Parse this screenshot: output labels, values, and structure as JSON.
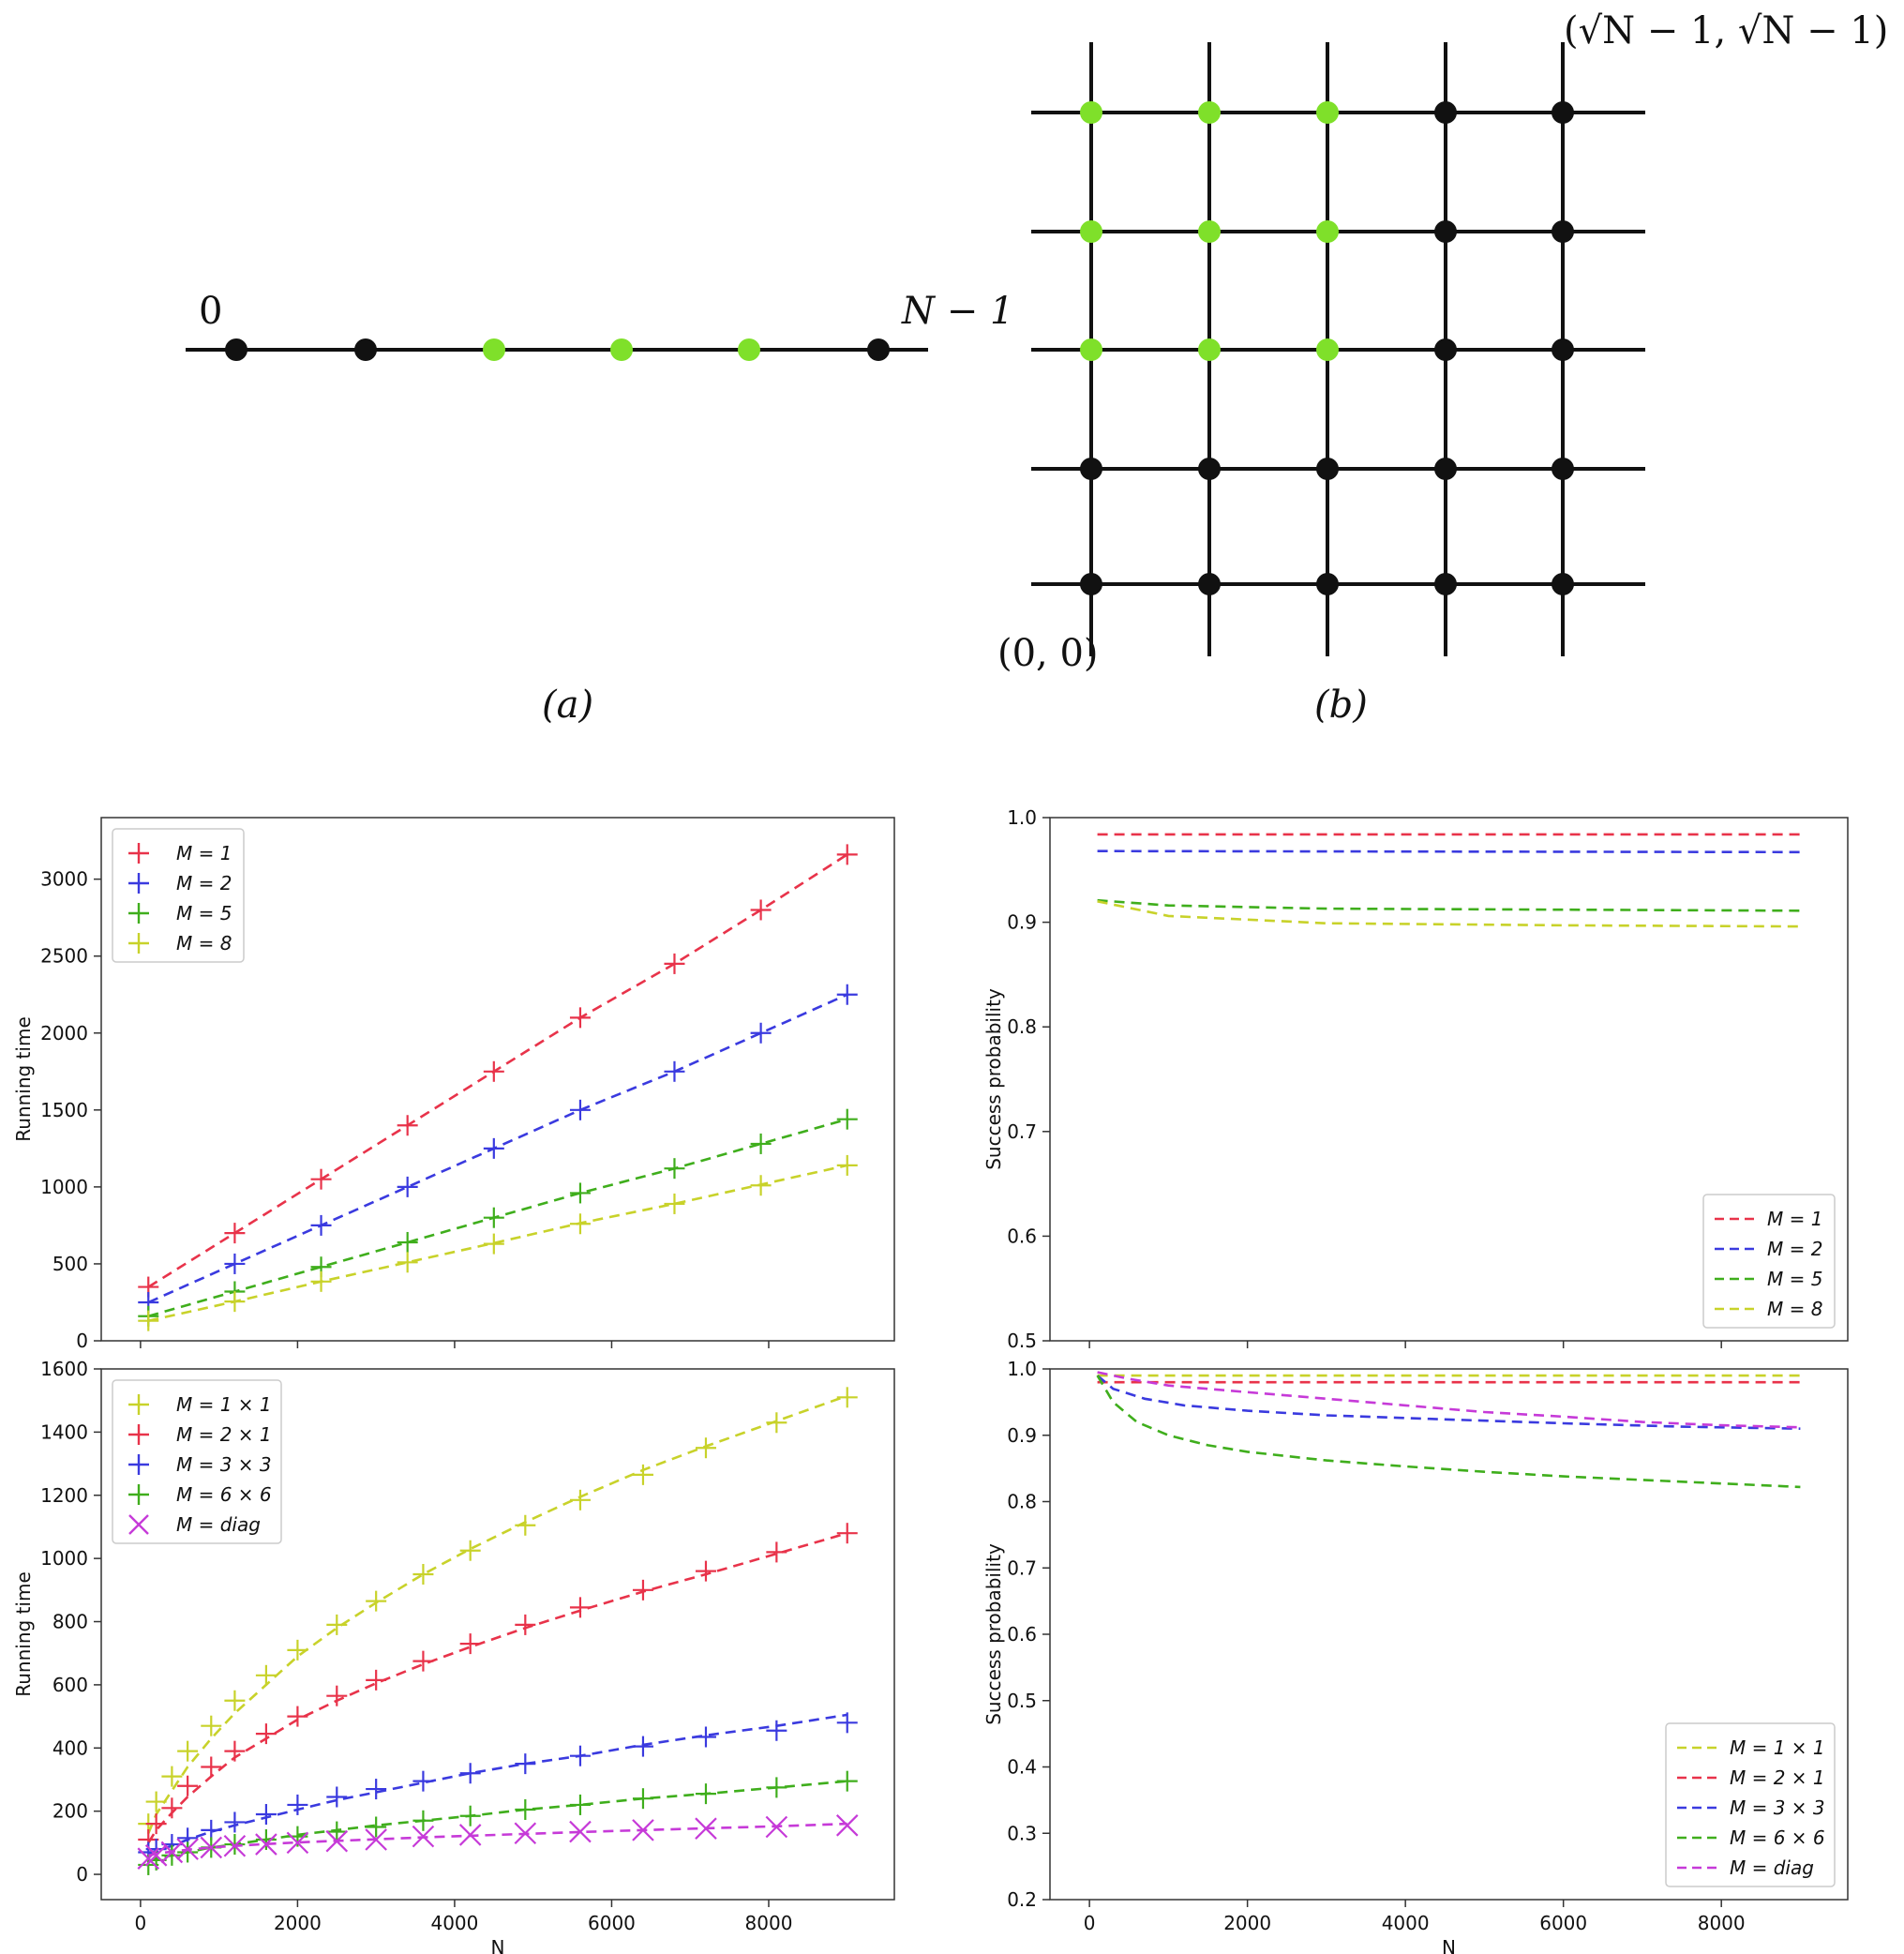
{
  "diagrams": {
    "line": {
      "start_label": "0",
      "end_label": "N − 1",
      "caption": "(a)",
      "node_states": [
        "black",
        "black",
        "green",
        "green",
        "green",
        "black"
      ]
    },
    "grid": {
      "origin_label": "(0, 0)",
      "corner_label": "(√N − 1, √N − 1)",
      "caption": "(b)",
      "rows_top_to_bottom": [
        [
          "green",
          "green",
          "green",
          "black",
          "black"
        ],
        [
          "green",
          "green",
          "green",
          "black",
          "black"
        ],
        [
          "green",
          "green",
          "green",
          "black",
          "black"
        ],
        [
          "black",
          "black",
          "black",
          "black",
          "black"
        ],
        [
          "black",
          "black",
          "black",
          "black",
          "black"
        ]
      ]
    }
  },
  "colors": {
    "red": "#e8334a",
    "blue": "#3a3adf",
    "green": "#3fae1c",
    "yellow": "#c8d22a",
    "magenta": "#c63ad8",
    "node_green": "#7fe02a",
    "node_black": "#111111"
  },
  "chart_data": [
    {
      "id": "top-left",
      "type": "line",
      "title": "",
      "xlabel": "",
      "ylabel": "Running time",
      "xlim": [
        -500,
        9600
      ],
      "ylim": [
        0,
        3400
      ],
      "xticks": [
        0,
        2000,
        4000,
        6000,
        8000
      ],
      "yticks": [
        0,
        500,
        1000,
        1500,
        2000,
        2500,
        3000
      ],
      "show_x_ticklabels": false,
      "legend_position": "top-left",
      "legend": [
        {
          "label": "M = 1",
          "color": "red",
          "marker": "plus"
        },
        {
          "label": "M = 2",
          "color": "blue",
          "marker": "plus"
        },
        {
          "label": "M = 5",
          "color": "green",
          "marker": "plus"
        },
        {
          "label": "M = 8",
          "color": "yellow",
          "marker": "plus"
        }
      ],
      "series": [
        {
          "name": "M = 1",
          "color": "red",
          "marker": "plus",
          "x": [
            100,
            1200,
            2300,
            3400,
            4500,
            5600,
            6800,
            7900,
            9000
          ],
          "points": [
            350,
            700,
            1050,
            1400,
            1750,
            2100,
            2450,
            2800,
            3160
          ],
          "fit": [
            350,
            700,
            1050,
            1400,
            1750,
            2100,
            2450,
            2800,
            3160
          ]
        },
        {
          "name": "M = 2",
          "color": "blue",
          "marker": "plus",
          "x": [
            100,
            1200,
            2300,
            3400,
            4500,
            5600,
            6800,
            7900,
            9000
          ],
          "points": [
            250,
            500,
            750,
            1000,
            1250,
            1500,
            1750,
            2000,
            2250
          ],
          "fit": [
            250,
            500,
            750,
            1000,
            1250,
            1500,
            1750,
            2000,
            2250
          ]
        },
        {
          "name": "M = 5",
          "color": "green",
          "marker": "plus",
          "x": [
            100,
            1200,
            2300,
            3400,
            4500,
            5600,
            6800,
            7900,
            9000
          ],
          "points": [
            160,
            320,
            480,
            640,
            800,
            960,
            1120,
            1280,
            1440
          ],
          "fit": [
            160,
            320,
            480,
            640,
            800,
            960,
            1120,
            1280,
            1440
          ]
        },
        {
          "name": "M = 8",
          "color": "yellow",
          "marker": "plus",
          "x": [
            100,
            1200,
            2300,
            3400,
            4500,
            5600,
            6800,
            7900,
            9000
          ],
          "points": [
            130,
            255,
            385,
            510,
            630,
            760,
            890,
            1010,
            1140
          ],
          "fit": [
            130,
            255,
            385,
            510,
            635,
            765,
            890,
            1015,
            1140
          ]
        }
      ]
    },
    {
      "id": "top-right",
      "type": "line",
      "title": "",
      "xlabel": "",
      "ylabel": "Success probability",
      "xlim": [
        -500,
        9600
      ],
      "ylim": [
        0.5,
        1.0
      ],
      "xticks": [
        0,
        2000,
        4000,
        6000,
        8000
      ],
      "yticks": [
        0.5,
        0.6,
        0.7,
        0.8,
        0.9,
        1.0
      ],
      "ytick_labels": [
        "0.5",
        "0.6",
        "0.7",
        "0.8",
        "0.9",
        "1.0"
      ],
      "show_x_ticklabels": false,
      "legend_position": "bottom-right",
      "legend": [
        {
          "label": "M = 1",
          "color": "red",
          "marker": "dash"
        },
        {
          "label": "M = 2",
          "color": "blue",
          "marker": "dash"
        },
        {
          "label": "M = 5",
          "color": "green",
          "marker": "dash"
        },
        {
          "label": "M = 8",
          "color": "yellow",
          "marker": "dash"
        }
      ],
      "series": [
        {
          "name": "M = 1",
          "color": "red",
          "x": [
            100,
            9000
          ],
          "fit": [
            0.984,
            0.984
          ]
        },
        {
          "name": "M = 2",
          "color": "blue",
          "x": [
            100,
            9000
          ],
          "fit": [
            0.968,
            0.967
          ]
        },
        {
          "name": "M = 5",
          "color": "green",
          "x": [
            100,
            1000,
            3000,
            6000,
            9000
          ],
          "fit": [
            0.921,
            0.916,
            0.913,
            0.912,
            0.911
          ]
        },
        {
          "name": "M = 8",
          "color": "yellow",
          "x": [
            100,
            1000,
            3000,
            6000,
            9000
          ],
          "fit": [
            0.92,
            0.906,
            0.899,
            0.897,
            0.896
          ]
        }
      ]
    },
    {
      "id": "bottom-left",
      "type": "line",
      "title": "",
      "xlabel": "N",
      "ylabel": "Running time",
      "xlim": [
        -500,
        9600
      ],
      "ylim": [
        -80,
        1600
      ],
      "xticks": [
        0,
        2000,
        4000,
        6000,
        8000
      ],
      "yticks": [
        0,
        200,
        400,
        600,
        800,
        1000,
        1200,
        1400,
        1600
      ],
      "show_x_ticklabels": true,
      "legend_position": "top-left",
      "legend": [
        {
          "label": "M = 1 × 1",
          "color": "yellow",
          "marker": "plus"
        },
        {
          "label": "M = 2 × 1",
          "color": "red",
          "marker": "plus"
        },
        {
          "label": "M = 3 × 3",
          "color": "blue",
          "marker": "plus"
        },
        {
          "label": "M = 6 × 6",
          "color": "green",
          "marker": "plus"
        },
        {
          "label": "M = diag",
          "color": "magenta",
          "marker": "cross"
        }
      ],
      "series": [
        {
          "name": "M = 1 × 1",
          "color": "yellow",
          "marker": "plus",
          "x": [
            100,
            200,
            400,
            600,
            900,
            1200,
            1600,
            2000,
            2500,
            3000,
            3600,
            4200,
            4900,
            5600,
            6400,
            7200,
            8100,
            9000
          ],
          "points": [
            160,
            230,
            310,
            390,
            470,
            550,
            630,
            710,
            790,
            865,
            950,
            1025,
            1105,
            1185,
            1265,
            1350,
            1430,
            1510
          ],
          "fit": [
            130,
            190,
            265,
            340,
            430,
            510,
            600,
            690,
            780,
            860,
            950,
            1030,
            1115,
            1195,
            1280,
            1355,
            1435,
            1515
          ]
        },
        {
          "name": "M = 2 × 1",
          "color": "red",
          "marker": "plus",
          "x": [
            100,
            200,
            400,
            600,
            900,
            1200,
            1600,
            2000,
            2500,
            3000,
            3600,
            4200,
            4900,
            5600,
            6400,
            7200,
            8100,
            9000
          ],
          "points": [
            110,
            160,
            210,
            280,
            340,
            390,
            445,
            500,
            565,
            615,
            675,
            730,
            790,
            845,
            900,
            960,
            1020,
            1080
          ],
          "fit": [
            100,
            140,
            195,
            245,
            310,
            370,
            430,
            490,
            550,
            605,
            665,
            720,
            780,
            835,
            895,
            950,
            1015,
            1080
          ]
        },
        {
          "name": "M = 3 × 3",
          "color": "blue",
          "marker": "plus",
          "x": [
            100,
            200,
            400,
            600,
            900,
            1200,
            1600,
            2000,
            2500,
            3000,
            3600,
            4200,
            4900,
            5600,
            6400,
            7200,
            8100,
            9000
          ],
          "points": [
            70,
            80,
            95,
            115,
            140,
            165,
            190,
            220,
            245,
            270,
            295,
            320,
            350,
            375,
            405,
            435,
            455,
            480
          ],
          "fit": [
            65,
            75,
            90,
            110,
            135,
            155,
            180,
            205,
            235,
            260,
            290,
            320,
            350,
            375,
            410,
            440,
            470,
            505
          ]
        },
        {
          "name": "M = 6 × 6",
          "color": "green",
          "marker": "plus",
          "x": [
            100,
            200,
            400,
            600,
            900,
            1200,
            1600,
            2000,
            2500,
            3000,
            3600,
            4200,
            4900,
            5600,
            6400,
            7200,
            8100,
            9000
          ],
          "points": [
            30,
            45,
            60,
            70,
            85,
            95,
            110,
            120,
            135,
            150,
            170,
            185,
            205,
            220,
            240,
            255,
            275,
            295
          ],
          "fit": [
            40,
            50,
            60,
            70,
            85,
            95,
            110,
            125,
            140,
            155,
            170,
            185,
            205,
            220,
            240,
            255,
            275,
            295
          ]
        },
        {
          "name": "M = diag",
          "color": "magenta",
          "marker": "cross",
          "x": [
            100,
            200,
            400,
            600,
            900,
            1200,
            1600,
            2000,
            2500,
            3000,
            3600,
            4200,
            4900,
            5600,
            6400,
            7200,
            8100,
            9000
          ],
          "points": [
            50,
            60,
            70,
            80,
            85,
            90,
            95,
            100,
            105,
            110,
            120,
            125,
            130,
            135,
            140,
            145,
            150,
            155
          ],
          "fit": [
            60,
            65,
            72,
            78,
            85,
            90,
            96,
            101,
            106,
            111,
            117,
            122,
            128,
            134,
            140,
            146,
            152,
            160
          ]
        }
      ]
    },
    {
      "id": "bottom-right",
      "type": "line",
      "title": "",
      "xlabel": "N",
      "ylabel": "Success probability",
      "xlim": [
        -500,
        9600
      ],
      "ylim": [
        0.2,
        1.0
      ],
      "xticks": [
        0,
        2000,
        4000,
        6000,
        8000
      ],
      "yticks": [
        0.2,
        0.3,
        0.4,
        0.5,
        0.6,
        0.7,
        0.8,
        0.9,
        1.0
      ],
      "ytick_labels": [
        "0.2",
        "0.3",
        "0.4",
        "0.5",
        "0.6",
        "0.7",
        "0.8",
        "0.9",
        "1.0"
      ],
      "show_x_ticklabels": true,
      "legend_position": "bottom-right",
      "legend": [
        {
          "label": "M = 1 × 1",
          "color": "yellow",
          "marker": "dash"
        },
        {
          "label": "M = 2 × 1",
          "color": "red",
          "marker": "dash"
        },
        {
          "label": "M = 3 × 3",
          "color": "blue",
          "marker": "dash"
        },
        {
          "label": "M = 6 × 6",
          "color": "green",
          "marker": "dash"
        },
        {
          "label": "M = diag",
          "color": "magenta",
          "marker": "dash"
        }
      ],
      "series": [
        {
          "name": "M = 1 × 1",
          "color": "yellow",
          "x": [
            100,
            9000
          ],
          "fit": [
            0.99,
            0.99
          ]
        },
        {
          "name": "M = 2 × 1",
          "color": "red",
          "x": [
            100,
            9000
          ],
          "fit": [
            0.98,
            0.98
          ]
        },
        {
          "name": "M = 3 × 3",
          "color": "blue",
          "x": [
            100,
            300,
            700,
            1200,
            2000,
            3000,
            4500,
            6000,
            7500,
            9000
          ],
          "fit": [
            0.99,
            0.97,
            0.955,
            0.945,
            0.937,
            0.93,
            0.924,
            0.918,
            0.913,
            0.91
          ]
        },
        {
          "name": "M = 6 × 6",
          "color": "green",
          "x": [
            100,
            300,
            600,
            1000,
            1500,
            2000,
            3000,
            4000,
            5000,
            6000,
            7500,
            9000
          ],
          "fit": [
            0.99,
            0.95,
            0.92,
            0.9,
            0.885,
            0.875,
            0.862,
            0.853,
            0.845,
            0.838,
            0.83,
            0.822
          ]
        },
        {
          "name": "M = diag",
          "color": "magenta",
          "x": [
            100,
            500,
            1000,
            2000,
            3000,
            4000,
            5000,
            6000,
            7000,
            8000,
            9000
          ],
          "fit": [
            0.995,
            0.985,
            0.975,
            0.965,
            0.955,
            0.945,
            0.935,
            0.928,
            0.92,
            0.915,
            0.912
          ]
        }
      ]
    }
  ]
}
